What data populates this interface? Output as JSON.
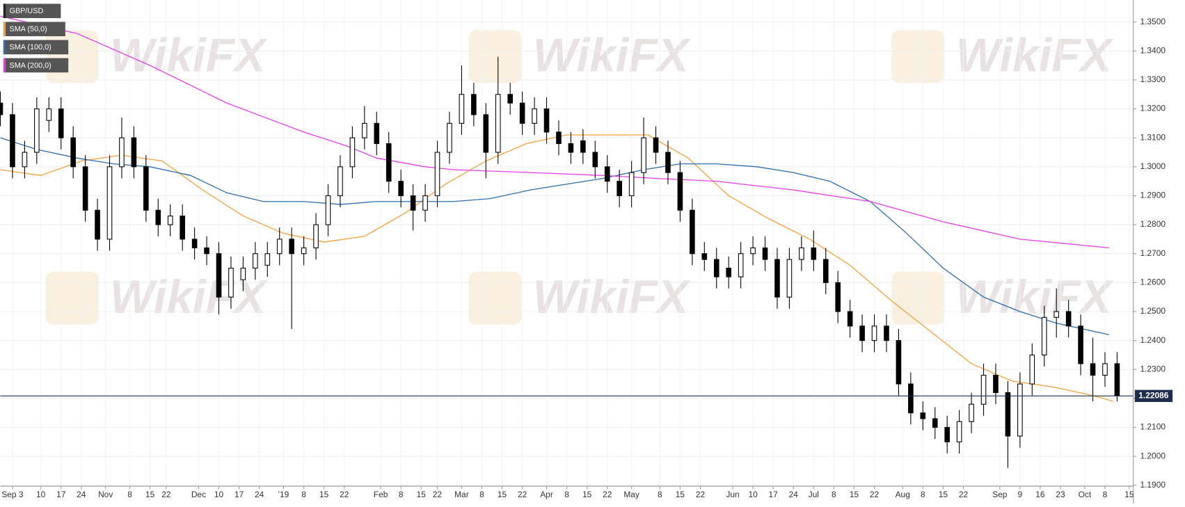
{
  "chart_data": {
    "type": "candlestick",
    "symbol": "GBP/USD",
    "watermark": "WikiFX",
    "legend": "top-left",
    "grid": true,
    "xlim": [
      0,
      280
    ],
    "ylim": [
      1.1897,
      1.3576
    ],
    "xticks": [
      {
        "value": 3,
        "label": "Sep 3"
      },
      {
        "value": 10,
        "label": "10"
      },
      {
        "value": 15,
        "label": "17"
      },
      {
        "value": 20,
        "label": "24"
      },
      {
        "value": 26,
        "label": "Nov"
      },
      {
        "value": 32,
        "label": "8"
      },
      {
        "value": 37,
        "label": "15"
      },
      {
        "value": 41,
        "label": "22"
      },
      {
        "value": 49,
        "label": "Dec"
      },
      {
        "value": 54,
        "label": "10"
      },
      {
        "value": 59,
        "label": "17"
      },
      {
        "value": 64,
        "label": "24"
      },
      {
        "value": 70,
        "label": "'19"
      },
      {
        "value": 75,
        "label": "8"
      },
      {
        "value": 80,
        "label": "15"
      },
      {
        "value": 85,
        "label": "22"
      },
      {
        "value": 94,
        "label": "Feb"
      },
      {
        "value": 99,
        "label": "8"
      },
      {
        "value": 104,
        "label": "15"
      },
      {
        "value": 108,
        "label": "22"
      },
      {
        "value": 114,
        "label": "Mar"
      },
      {
        "value": 119,
        "label": "8"
      },
      {
        "value": 124,
        "label": "15"
      },
      {
        "value": 129,
        "label": "22"
      },
      {
        "value": 135,
        "label": "Apr"
      },
      {
        "value": 140,
        "label": "8"
      },
      {
        "value": 145,
        "label": "15"
      },
      {
        "value": 150,
        "label": "22"
      },
      {
        "value": 156,
        "label": "May"
      },
      {
        "value": 163,
        "label": "8"
      },
      {
        "value": 168,
        "label": "15"
      },
      {
        "value": 173,
        "label": "22"
      },
      {
        "value": 181,
        "label": "Jun"
      },
      {
        "value": 186,
        "label": "10"
      },
      {
        "value": 191,
        "label": "17"
      },
      {
        "value": 196,
        "label": "24"
      },
      {
        "value": 201,
        "label": "Jul"
      },
      {
        "value": 206,
        "label": "8"
      },
      {
        "value": 211,
        "label": "15"
      },
      {
        "value": 216,
        "label": "22"
      },
      {
        "value": 223,
        "label": "Aug"
      },
      {
        "value": 228,
        "label": "8"
      },
      {
        "value": 233,
        "label": "15"
      },
      {
        "value": 238,
        "label": "22"
      },
      {
        "value": 247,
        "label": "Sep"
      },
      {
        "value": 252,
        "label": "9"
      },
      {
        "value": 257,
        "label": "16"
      },
      {
        "value": 262,
        "label": "23"
      },
      {
        "value": 268,
        "label": "Oct"
      },
      {
        "value": 273,
        "label": "8"
      },
      {
        "value": 279,
        "label": "15"
      }
    ],
    "yticks": [
      {
        "value": 1.19,
        "label": "1.1900"
      },
      {
        "value": 1.2,
        "label": "1.2000"
      },
      {
        "value": 1.21,
        "label": "1.2100"
      },
      {
        "value": 1.22,
        "label": "1.2200"
      },
      {
        "value": 1.23,
        "label": "1.2300"
      },
      {
        "value": 1.24,
        "label": "1.2400"
      },
      {
        "value": 1.25,
        "label": "1.2500"
      },
      {
        "value": 1.26,
        "label": "1.2600"
      },
      {
        "value": 1.27,
        "label": "1.2700"
      },
      {
        "value": 1.28,
        "label": "1.2800"
      },
      {
        "value": 1.29,
        "label": "1.2900"
      },
      {
        "value": 1.3,
        "label": "1.3000"
      },
      {
        "value": 1.31,
        "label": "1.3100"
      },
      {
        "value": 1.32,
        "label": "1.3200"
      },
      {
        "value": 1.33,
        "label": "1.3300"
      },
      {
        "value": 1.34,
        "label": "1.3400"
      },
      {
        "value": 1.35,
        "label": "1.3500"
      }
    ],
    "last_price": {
      "value": 1.22086,
      "label": "1.22086"
    },
    "candles": {
      "x": [
        0,
        3,
        6,
        9,
        12,
        15,
        18,
        21,
        24,
        27,
        30,
        33,
        36,
        39,
        42,
        45,
        48,
        51,
        54,
        57,
        60,
        63,
        66,
        69,
        72,
        75,
        78,
        81,
        84,
        87,
        90,
        93,
        96,
        99,
        102,
        105,
        108,
        111,
        114,
        117,
        120,
        123,
        126,
        129,
        132,
        135,
        138,
        141,
        144,
        147,
        150,
        153,
        156,
        159,
        162,
        165,
        168,
        171,
        174,
        177,
        180,
        183,
        186,
        189,
        192,
        195,
        198,
        201,
        204,
        207,
        210,
        213,
        216,
        219,
        222,
        225,
        228,
        231,
        234,
        237,
        240,
        243,
        246,
        249,
        252,
        255,
        258,
        261,
        264,
        267,
        270,
        273,
        276
      ],
      "open": [
        1.322,
        1.318,
        1.3,
        1.305,
        1.316,
        1.32,
        1.31,
        1.3,
        1.285,
        1.275,
        1.3,
        1.31,
        1.3,
        1.285,
        1.28,
        1.283,
        1.275,
        1.272,
        1.27,
        1.255,
        1.261,
        1.265,
        1.266,
        1.27,
        1.275,
        1.27,
        1.272,
        1.28,
        1.29,
        1.3,
        1.31,
        1.315,
        1.308,
        1.295,
        1.29,
        1.285,
        1.29,
        1.305,
        1.315,
        1.325,
        1.318,
        1.305,
        1.325,
        1.322,
        1.315,
        1.32,
        1.312,
        1.308,
        1.309,
        1.305,
        1.3,
        1.295,
        1.29,
        1.298,
        1.31,
        1.305,
        1.298,
        1.285,
        1.27,
        1.268,
        1.265,
        1.262,
        1.27,
        1.272,
        1.268,
        1.255,
        1.268,
        1.272,
        1.268,
        1.26,
        1.25,
        1.245,
        1.24,
        1.245,
        1.24,
        1.225,
        1.215,
        1.213,
        1.21,
        1.205,
        1.212,
        1.218,
        1.228,
        1.222,
        1.207,
        1.225,
        1.235,
        1.248,
        1.25,
        1.245,
        1.232,
        1.228,
        1.232
      ],
      "high": [
        1.326,
        1.322,
        1.309,
        1.324,
        1.324,
        1.324,
        1.314,
        1.304,
        1.289,
        1.304,
        1.317,
        1.314,
        1.304,
        1.289,
        1.287,
        1.287,
        1.279,
        1.276,
        1.274,
        1.269,
        1.269,
        1.274,
        1.274,
        1.279,
        1.279,
        1.276,
        1.284,
        1.294,
        1.304,
        1.314,
        1.321,
        1.319,
        1.312,
        1.299,
        1.294,
        1.294,
        1.309,
        1.319,
        1.335,
        1.329,
        1.322,
        1.338,
        1.329,
        1.326,
        1.324,
        1.324,
        1.316,
        1.312,
        1.313,
        1.309,
        1.304,
        1.299,
        1.302,
        1.317,
        1.314,
        1.309,
        1.302,
        1.289,
        1.274,
        1.272,
        1.269,
        1.274,
        1.276,
        1.276,
        1.272,
        1.272,
        1.276,
        1.278,
        1.272,
        1.264,
        1.254,
        1.249,
        1.249,
        1.249,
        1.244,
        1.229,
        1.219,
        1.217,
        1.214,
        1.216,
        1.222,
        1.232,
        1.232,
        1.226,
        1.229,
        1.239,
        1.252,
        1.258,
        1.254,
        1.249,
        1.241,
        1.236,
        1.236
      ],
      "low": [
        1.314,
        1.296,
        1.296,
        1.301,
        1.312,
        1.306,
        1.296,
        1.281,
        1.271,
        1.271,
        1.296,
        1.296,
        1.281,
        1.276,
        1.276,
        1.271,
        1.268,
        1.266,
        1.249,
        1.251,
        1.257,
        1.261,
        1.262,
        1.266,
        1.244,
        1.266,
        1.268,
        1.276,
        1.286,
        1.296,
        1.306,
        1.304,
        1.291,
        1.286,
        1.278,
        1.281,
        1.286,
        1.301,
        1.311,
        1.314,
        1.296,
        1.301,
        1.318,
        1.311,
        1.311,
        1.308,
        1.304,
        1.301,
        1.301,
        1.296,
        1.291,
        1.286,
        1.286,
        1.294,
        1.301,
        1.294,
        1.281,
        1.266,
        1.264,
        1.258,
        1.258,
        1.258,
        1.266,
        1.264,
        1.251,
        1.251,
        1.264,
        1.264,
        1.256,
        1.246,
        1.241,
        1.236,
        1.236,
        1.236,
        1.221,
        1.211,
        1.209,
        1.206,
        1.201,
        1.201,
        1.208,
        1.214,
        1.218,
        1.196,
        1.203,
        1.221,
        1.231,
        1.241,
        1.241,
        1.228,
        1.219,
        1.224,
        1.219
      ],
      "close": [
        1.318,
        1.3,
        1.305,
        1.32,
        1.32,
        1.31,
        1.3,
        1.285,
        1.275,
        1.3,
        1.31,
        1.3,
        1.285,
        1.28,
        1.283,
        1.275,
        1.272,
        1.27,
        1.255,
        1.265,
        1.265,
        1.27,
        1.27,
        1.275,
        1.27,
        1.272,
        1.28,
        1.29,
        1.3,
        1.31,
        1.315,
        1.308,
        1.295,
        1.29,
        1.285,
        1.29,
        1.305,
        1.315,
        1.325,
        1.318,
        1.305,
        1.325,
        1.322,
        1.315,
        1.32,
        1.312,
        1.308,
        1.305,
        1.305,
        1.3,
        1.295,
        1.29,
        1.298,
        1.31,
        1.305,
        1.298,
        1.285,
        1.27,
        1.268,
        1.262,
        1.262,
        1.27,
        1.272,
        1.268,
        1.255,
        1.268,
        1.272,
        1.268,
        1.26,
        1.25,
        1.245,
        1.24,
        1.245,
        1.24,
        1.225,
        1.215,
        1.213,
        1.21,
        1.205,
        1.212,
        1.218,
        1.228,
        1.222,
        1.207,
        1.225,
        1.235,
        1.248,
        1.25,
        1.245,
        1.232,
        1.228,
        1.232,
        1.221
      ]
    },
    "series": [
      {
        "name": "SMA (50,0)",
        "color": "#f5a13a",
        "x": [
          0,
          10,
          20,
          30,
          40,
          50,
          60,
          70,
          80,
          90,
          100,
          110,
          120,
          130,
          140,
          150,
          160,
          170,
          180,
          190,
          200,
          210,
          220,
          230,
          240,
          250,
          260,
          270,
          275
        ],
        "values": [
          1.299,
          1.297,
          1.302,
          1.304,
          1.302,
          1.292,
          1.283,
          1.277,
          1.274,
          1.276,
          1.284,
          1.294,
          1.302,
          1.308,
          1.311,
          1.311,
          1.311,
          1.303,
          1.29,
          1.282,
          1.275,
          1.266,
          1.254,
          1.243,
          1.232,
          1.226,
          1.224,
          1.221,
          1.219
        ]
      },
      {
        "name": "SMA (100,0)",
        "color": "#2d6cb0",
        "x": [
          0,
          9,
          19,
          28,
          37,
          47,
          56,
          65,
          75,
          84,
          93,
          103,
          112,
          121,
          131,
          140,
          149,
          159,
          168,
          177,
          187,
          196,
          205,
          215,
          224,
          233,
          243,
          252,
          261,
          274
        ],
        "values": [
          1.31,
          1.306,
          1.303,
          1.301,
          1.3,
          1.297,
          1.291,
          1.288,
          1.288,
          1.287,
          1.288,
          1.288,
          1.288,
          1.289,
          1.292,
          1.294,
          1.296,
          1.299,
          1.301,
          1.301,
          1.3,
          1.298,
          1.295,
          1.288,
          1.277,
          1.265,
          1.255,
          1.25,
          1.246,
          1.242
        ]
      },
      {
        "name": "SMA (200,0)",
        "color": "#e83ee8",
        "x": [
          0,
          19,
          37,
          56,
          75,
          86,
          93,
          105,
          112,
          131,
          149,
          162,
          177,
          196,
          215,
          233,
          252,
          274
        ],
        "values": [
          1.352,
          1.346,
          1.335,
          1.322,
          1.312,
          1.307,
          1.303,
          1.3,
          1.299,
          1.298,
          1.297,
          1.296,
          1.295,
          1.292,
          1.288,
          1.281,
          1.275,
          1.272
        ]
      }
    ]
  }
}
